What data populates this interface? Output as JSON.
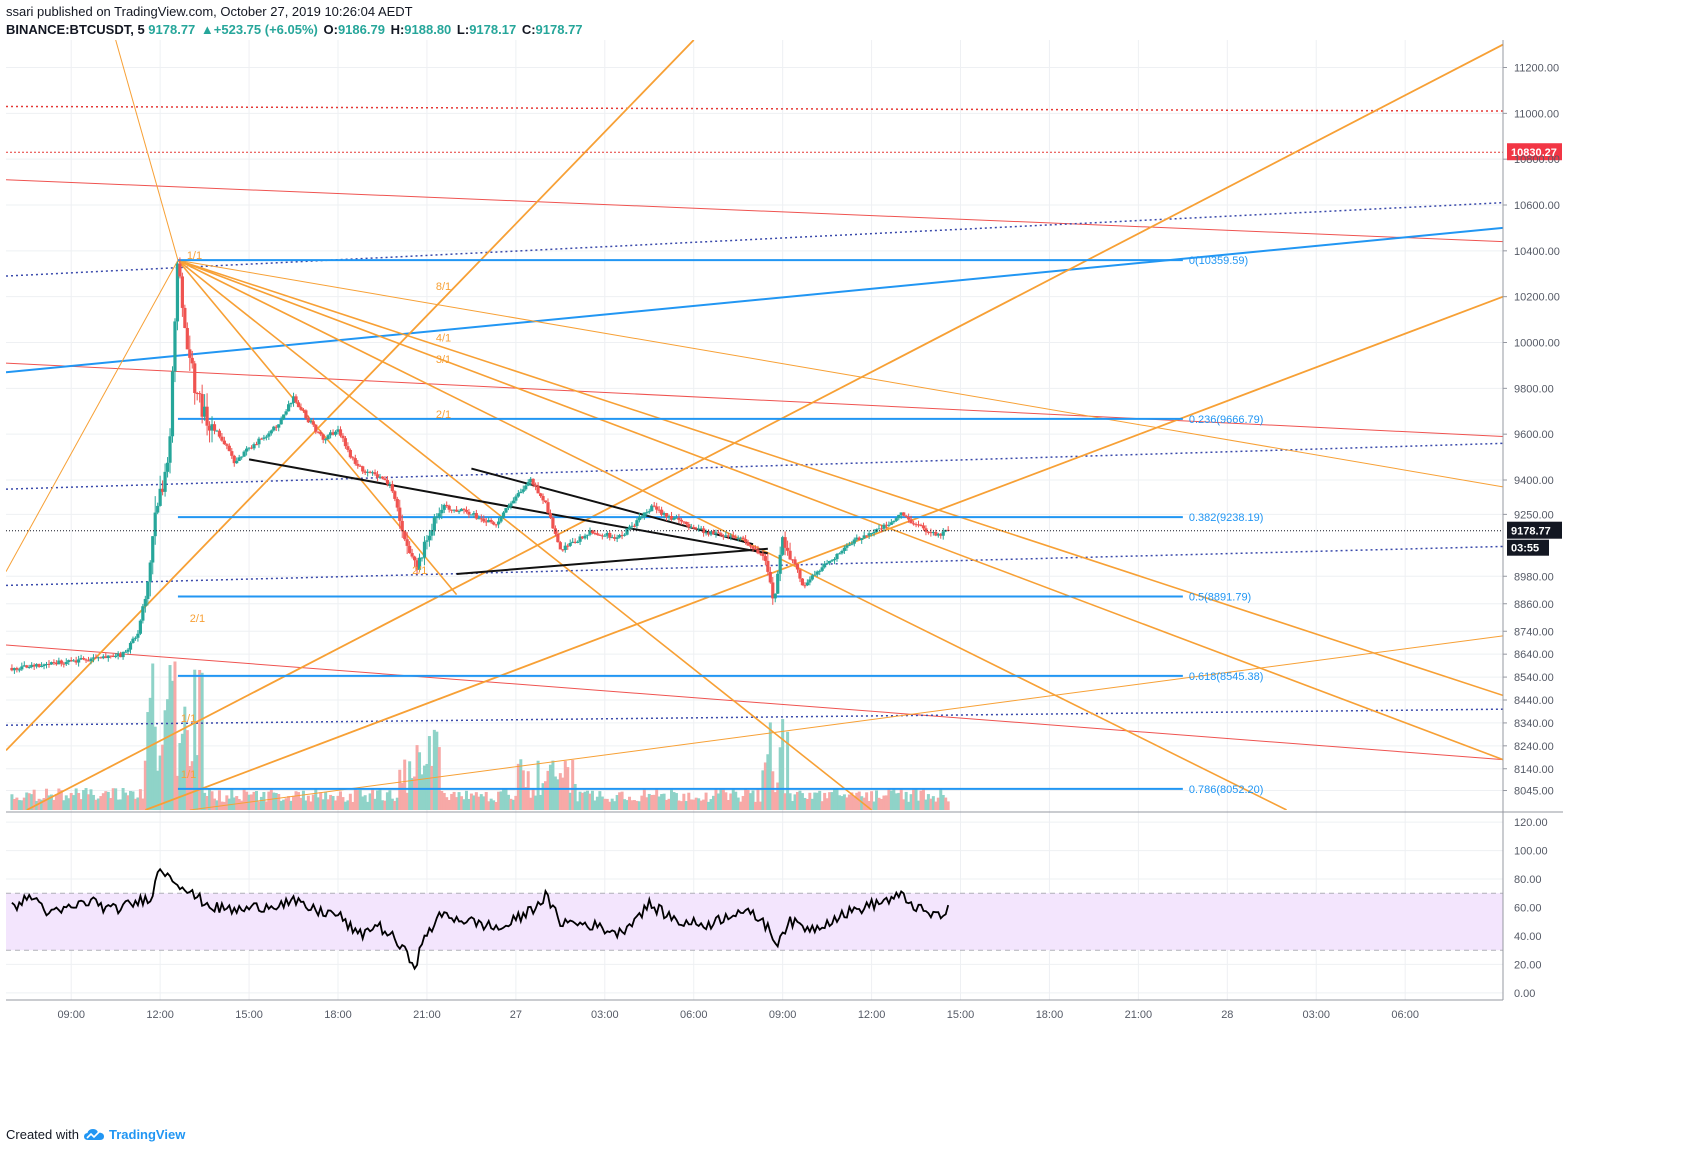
{
  "header": {
    "publisher": "ssari published on TradingView.com, October 27, 2019 10:26:04 AEDT",
    "symbol": "BINANCE:BTCUSDT, 5",
    "last": "9178.77",
    "change": "▲+523.75 (+6.05%)",
    "o_label": "O:",
    "o_value": "9186.79",
    "h_label": "H:",
    "h_value": "9188.80",
    "l_label": "L:",
    "l_value": "9178.17",
    "c_label": "C:",
    "c_value": "9178.77"
  },
  "footer": {
    "created_with": "Created with",
    "brand": "TradingView"
  },
  "colors": {
    "up": "#26a69a",
    "down": "#ef5350",
    "fib": "#2196f3",
    "gann": "#f7a035",
    "red_channel": "#ef5350",
    "dotted_red": "#e53935",
    "dotted_blue": "#3949ab",
    "rsi_band": "#f3e5fd",
    "price_tag_red": "#f23645"
  },
  "chart_data": [
    {
      "type": "candlestick",
      "title": "BINANCE:BTCUSDT, 5",
      "ylim": [
        7960,
        11320
      ],
      "y_ticks": [
        8045,
        8140,
        8240,
        8340,
        8440,
        8540,
        8640,
        8740,
        8860,
        8980,
        9250,
        9400,
        9600,
        9800,
        10000,
        10200,
        10400,
        10600,
        10800,
        11000,
        11200
      ],
      "y_tick_labels": [
        "8045.00",
        "8140.00",
        "8240.00",
        "8340.00",
        "8440.00",
        "8540.00",
        "8640.00",
        "8740.00",
        "8860.00",
        "8980.00",
        "9250.00",
        "9400.00",
        "9600.00",
        "9800.00",
        "10000.00",
        "10200.00",
        "10400.00",
        "10600.00",
        "10800.00",
        "11000.00",
        "11200.00"
      ],
      "x_ticks": [
        "09:00",
        "12:00",
        "15:00",
        "18:00",
        "21:00",
        "27",
        "03:00",
        "06:00",
        "09:00",
        "12:00",
        "15:00",
        "18:00",
        "21:00",
        "28",
        "03:00",
        "06:00"
      ],
      "x_range_hours": [
        6.8,
        57.3
      ],
      "last_price": 9178.77,
      "last_price_label": "9178.77",
      "countdown": "03:55",
      "resistance_tag": 10830.27,
      "resistance_tag_label": "10830.27",
      "anchors": [
        [
          7.0,
          8580
        ],
        [
          9.0,
          8610
        ],
        [
          10.0,
          8620
        ],
        [
          10.8,
          8640
        ],
        [
          11.3,
          8750
        ],
        [
          11.6,
          8980
        ],
        [
          11.9,
          9300
        ],
        [
          12.3,
          9500
        ],
        [
          12.6,
          10359
        ],
        [
          12.9,
          10000
        ],
        [
          13.2,
          9800
        ],
        [
          13.6,
          9640
        ],
        [
          14.0,
          9600
        ],
        [
          14.5,
          9480
        ],
        [
          15.0,
          9540
        ],
        [
          15.6,
          9600
        ],
        [
          16.0,
          9640
        ],
        [
          16.5,
          9760
        ],
        [
          17.0,
          9660
        ],
        [
          17.5,
          9580
        ],
        [
          18.0,
          9620
        ],
        [
          18.6,
          9460
        ],
        [
          19.3,
          9420
        ],
        [
          19.8,
          9380
        ],
        [
          20.3,
          9110
        ],
        [
          20.7,
          9020
        ],
        [
          21.0,
          9150
        ],
        [
          21.5,
          9290
        ],
        [
          22.3,
          9260
        ],
        [
          23.3,
          9210
        ],
        [
          24.5,
          9400
        ],
        [
          25.0,
          9300
        ],
        [
          25.5,
          9090
        ],
        [
          26.5,
          9170
        ],
        [
          27.5,
          9150
        ],
        [
          28.6,
          9280
        ],
        [
          29.5,
          9220
        ],
        [
          30.5,
          9170
        ],
        [
          31.6,
          9150
        ],
        [
          32.4,
          9050
        ],
        [
          32.7,
          8870
        ],
        [
          33.0,
          9150
        ],
        [
          33.7,
          8940
        ],
        [
          34.5,
          9040
        ],
        [
          35.6,
          9150
        ],
        [
          36.5,
          9200
        ],
        [
          37.0,
          9250
        ],
        [
          37.7,
          9190
        ],
        [
          38.3,
          9160
        ],
        [
          38.6,
          9190
        ]
      ],
      "fibonacci": [
        {
          "ratio": 0,
          "price": 10359.59,
          "label": "0(10359.59)"
        },
        {
          "ratio": 0.236,
          "price": 9666.79,
          "label": "0.236(9666.79)"
        },
        {
          "ratio": 0.382,
          "price": 9238.19,
          "label": "0.382(9238.19)"
        },
        {
          "ratio": 0.5,
          "price": 8891.79,
          "label": "0.5(8891.79)"
        },
        {
          "ratio": 0.618,
          "price": 8545.38,
          "label": "0.618(8545.38)"
        },
        {
          "ratio": 0.786,
          "price": 8052.2,
          "label": "0.786(8052.20)"
        }
      ],
      "gann_labels": [
        "1/1",
        "8/1",
        "4/1",
        "3/1",
        "2/1",
        "2/1",
        "2/1",
        "1/1",
        "1/1"
      ],
      "volume_visible": true
    },
    {
      "type": "line",
      "title": "RSI",
      "ylim": [
        -5,
        125
      ],
      "y_ticks": [
        0,
        20,
        40,
        60,
        80,
        100,
        120
      ],
      "y_tick_labels": [
        "0.00",
        "20.00",
        "40.00",
        "60.00",
        "80.00",
        "100.00",
        "120.00"
      ],
      "band": [
        30,
        70
      ],
      "anchors": [
        [
          7.0,
          60
        ],
        [
          7.7,
          68
        ],
        [
          8.3,
          55
        ],
        [
          9.0,
          60
        ],
        [
          9.7,
          65
        ],
        [
          10.3,
          58
        ],
        [
          11.0,
          62
        ],
        [
          11.7,
          68
        ],
        [
          12.0,
          88
        ],
        [
          12.6,
          78
        ],
        [
          13.0,
          70
        ],
        [
          13.8,
          60
        ],
        [
          14.6,
          58
        ],
        [
          15.5,
          61
        ],
        [
          16.5,
          64
        ],
        [
          17.2,
          58
        ],
        [
          18.0,
          55
        ],
        [
          18.7,
          40
        ],
        [
          19.3,
          48
        ],
        [
          19.8,
          40
        ],
        [
          20.4,
          25
        ],
        [
          20.6,
          20
        ],
        [
          21.0,
          42
        ],
        [
          21.5,
          55
        ],
        [
          22.5,
          50
        ],
        [
          23.5,
          45
        ],
        [
          24.5,
          58
        ],
        [
          25.0,
          68
        ],
        [
          25.5,
          50
        ],
        [
          26.5,
          48
        ],
        [
          27.5,
          42
        ],
        [
          28.5,
          62
        ],
        [
          29.5,
          50
        ],
        [
          30.5,
          48
        ],
        [
          31.5,
          58
        ],
        [
          32.3,
          52
        ],
        [
          32.8,
          35
        ],
        [
          33.2,
          50
        ],
        [
          34.0,
          45
        ],
        [
          35.0,
          55
        ],
        [
          36.0,
          62
        ],
        [
          37.0,
          68
        ],
        [
          37.8,
          56
        ],
        [
          38.3,
          54
        ],
        [
          38.6,
          58
        ]
      ]
    }
  ]
}
